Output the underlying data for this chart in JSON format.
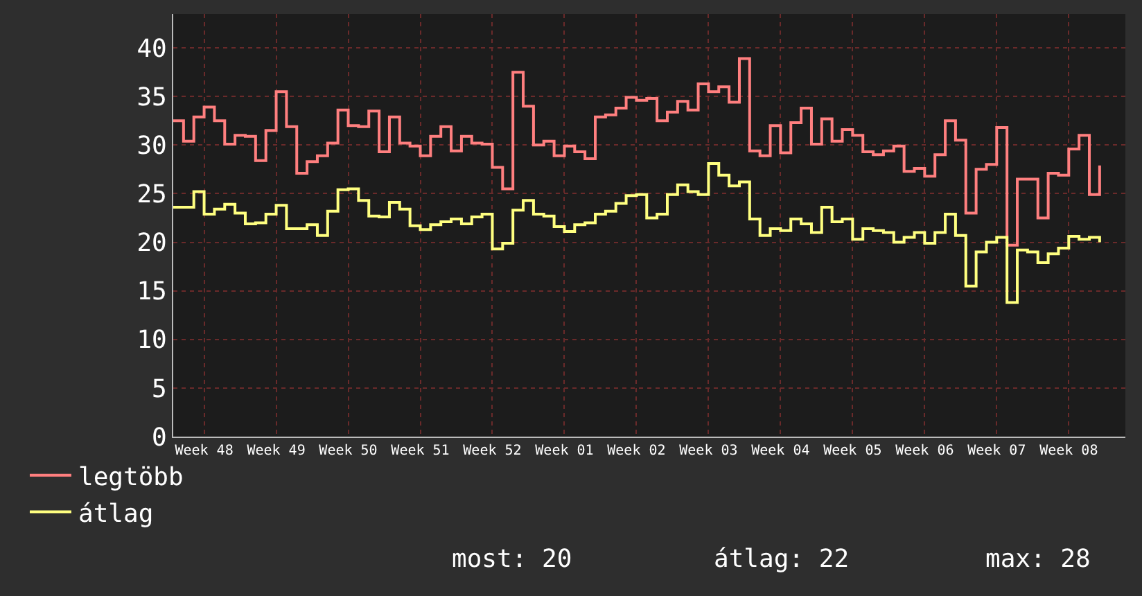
{
  "chart_data": {
    "type": "step",
    "categories": [
      null,
      null,
      null,
      "Week 48",
      null,
      null,
      null,
      null,
      null,
      null,
      "Week 49",
      null,
      null,
      null,
      null,
      null,
      null,
      "Week 50",
      null,
      null,
      null,
      null,
      null,
      null,
      "Week 51",
      null,
      null,
      null,
      null,
      null,
      null,
      "Week 52",
      null,
      null,
      null,
      null,
      null,
      null,
      "Week 01",
      null,
      null,
      null,
      null,
      null,
      null,
      "Week 02",
      null,
      null,
      null,
      null,
      null,
      null,
      "Week 03",
      null,
      null,
      null,
      null,
      null,
      null,
      "Week 04",
      null,
      null,
      null,
      null,
      null,
      null,
      "Week 05",
      null,
      null,
      null,
      null,
      null,
      null,
      "Week 06",
      null,
      null,
      null,
      null,
      null,
      null,
      "Week 07",
      null,
      null,
      null,
      null,
      null,
      null,
      "Week 08",
      null,
      null,
      null
    ],
    "series": [
      {
        "name": "legtöbb",
        "color": "#ff7f7f",
        "values": [
          32.5,
          30.4,
          32.9,
          33.9,
          32.5,
          30.1,
          31.0,
          30.9,
          28.4,
          31.5,
          35.5,
          31.9,
          27.1,
          28.3,
          28.9,
          30.2,
          33.6,
          32.0,
          31.9,
          33.5,
          29.3,
          32.9,
          30.2,
          29.9,
          28.9,
          30.9,
          31.9,
          29.4,
          30.9,
          30.2,
          30.1,
          27.7,
          25.5,
          37.5,
          34.0,
          30.0,
          30.4,
          28.9,
          29.9,
          29.3,
          28.6,
          32.9,
          33.1,
          33.8,
          34.9,
          34.6,
          34.8,
          32.5,
          33.4,
          34.5,
          33.6,
          36.3,
          35.5,
          36.0,
          34.4,
          38.9,
          29.4,
          28.9,
          32.0,
          29.2,
          32.3,
          33.8,
          30.1,
          32.7,
          30.4,
          31.6,
          31.0,
          29.3,
          29.0,
          29.4,
          29.9,
          27.3,
          27.6,
          26.8,
          29.0,
          32.5,
          30.5,
          23.0,
          27.5,
          28.0,
          31.8,
          19.7,
          26.5,
          26.5,
          22.5,
          27.1,
          26.9,
          29.6,
          31.0,
          24.9,
          27.9
        ]
      },
      {
        "name": "átlag",
        "color": "#ffff80",
        "values": [
          23.6,
          23.6,
          25.2,
          22.9,
          23.4,
          23.9,
          23.0,
          21.9,
          22.0,
          22.9,
          23.8,
          21.4,
          21.4,
          21.8,
          20.7,
          23.2,
          25.4,
          25.5,
          24.3,
          22.7,
          22.6,
          24.1,
          23.4,
          21.7,
          21.3,
          21.8,
          22.1,
          22.4,
          21.9,
          22.6,
          22.9,
          19.3,
          19.9,
          23.3,
          24.3,
          22.9,
          22.7,
          21.6,
          21.1,
          21.8,
          22.0,
          22.9,
          23.2,
          24.0,
          24.8,
          24.9,
          22.5,
          22.9,
          24.9,
          25.9,
          25.2,
          24.9,
          28.1,
          26.9,
          25.8,
          26.2,
          22.4,
          20.7,
          21.4,
          21.2,
          22.4,
          21.9,
          21.0,
          23.6,
          22.1,
          22.4,
          20.3,
          21.4,
          21.2,
          21.0,
          20.0,
          20.5,
          21.0,
          19.9,
          21.0,
          22.9,
          20.7,
          15.5,
          19.0,
          20.0,
          20.5,
          13.8,
          19.2,
          19.0,
          17.9,
          18.8,
          19.4,
          20.6,
          20.3,
          20.5,
          20.0
        ]
      }
    ],
    "ylim": [
      0,
      43.5
    ],
    "yticks": [
      0,
      5,
      10,
      15,
      20,
      25,
      30,
      35,
      40
    ],
    "grid": true,
    "legend": "bottom left",
    "marker": "none",
    "line_style": "solid",
    "annotations": [
      "most: 20",
      "átlag: 22",
      "max: 28"
    ]
  }
}
